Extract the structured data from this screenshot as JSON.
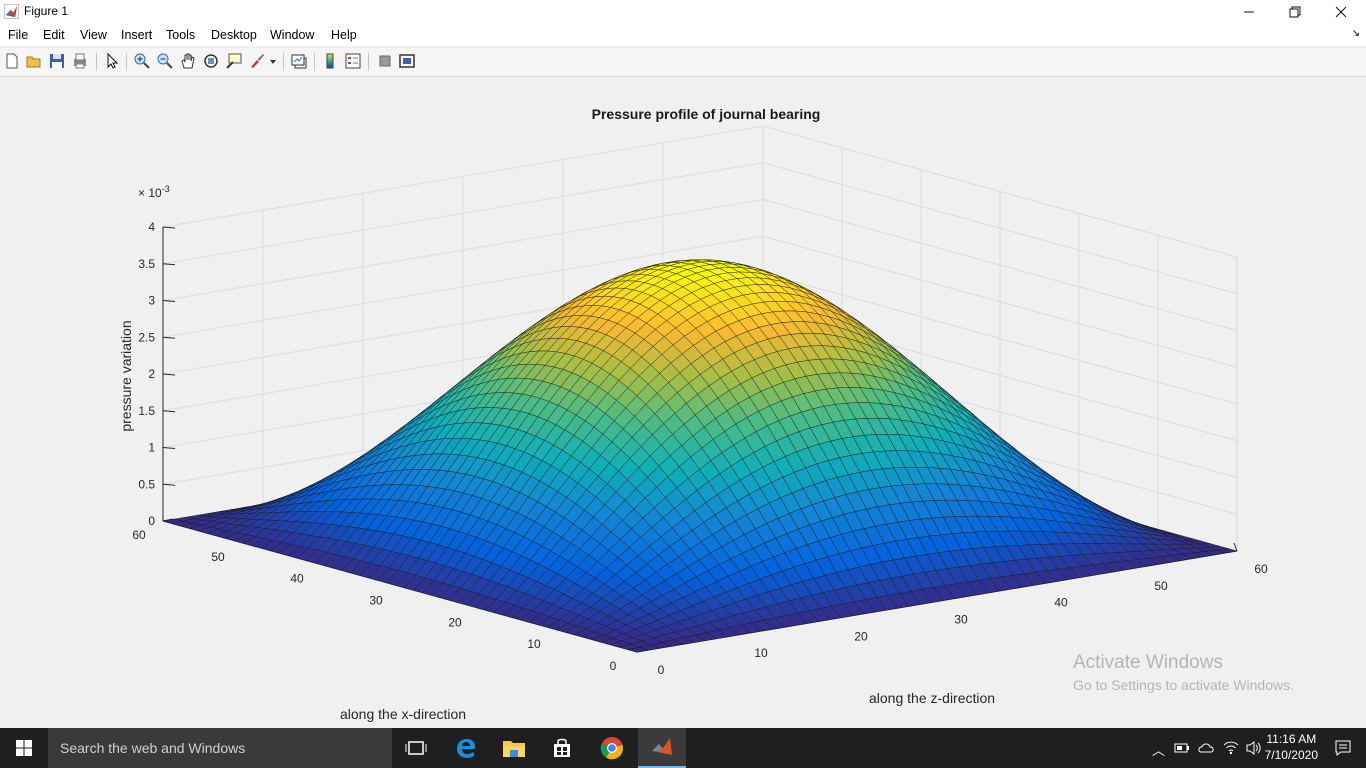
{
  "window": {
    "title": "Figure 1"
  },
  "menu": {
    "items": [
      "File",
      "Edit",
      "View",
      "Insert",
      "Tools",
      "Desktop",
      "Window",
      "Help"
    ]
  },
  "toolbar": {
    "icons": [
      "new-figure-icon",
      "open-file-icon",
      "save-icon",
      "print-icon",
      "edit-plot-icon",
      "zoom-in-icon",
      "zoom-out-icon",
      "pan-icon",
      "rotate-3d-icon",
      "data-cursor-icon",
      "brush-icon",
      "link-plot-icon",
      "insert-colorbar-icon",
      "insert-legend-icon",
      "hide-plot-tools-icon",
      "show-plot-tools-icon"
    ]
  },
  "plot": {
    "title": "Pressure profile of journal bearing",
    "xlabel": "along the x-direction",
    "zlabel": "along the z-direction",
    "ylabel": "pressure variation",
    "exponent_base": "× 10",
    "exponent_power": "-3"
  },
  "chart_data": {
    "type": "surface",
    "title": "Pressure profile of journal bearing",
    "xlabel": "along the x-direction",
    "ylabel": "along the z-direction",
    "zlabel": "pressure variation",
    "x_range": [
      0,
      60
    ],
    "y_range": [
      0,
      60
    ],
    "z_range": [
      0,
      0.004
    ],
    "z_exponent": "x 10^-3",
    "x_ticks": [
      "0",
      "10",
      "20",
      "30",
      "40",
      "50",
      "60"
    ],
    "y_ticks": [
      "0",
      "10",
      "20",
      "30",
      "40",
      "50",
      "60"
    ],
    "z_ticks": [
      "0",
      "0.5",
      "1",
      "1.5",
      "2",
      "2.5",
      "3",
      "3.5",
      "4"
    ],
    "grid_size": [
      54,
      54
    ],
    "peak_value": 0.0037,
    "surface_formula": "peak * sin(pi*i/53) * sin(pi*j/53) shaped dome",
    "colormap": "parula",
    "grid": true
  },
  "watermark": {
    "line1": "Activate Windows",
    "line2": "Go to Settings to activate Windows."
  },
  "taskbar": {
    "search_placeholder": "Search the web and Windows",
    "time": "11:16 AM",
    "date": "7/10/2020"
  },
  "colors": {
    "titlebar": "#ffffff",
    "figure_bg": "#f0f0f0",
    "taskbar": "#1f1f1f"
  }
}
